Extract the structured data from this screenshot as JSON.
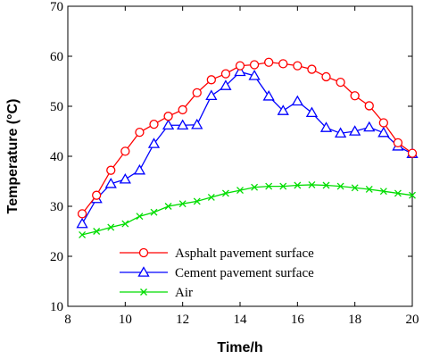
{
  "chart_data": {
    "type": "line",
    "xlabel": "Time/h",
    "ylabel": "Temperature (°C)",
    "xlim": [
      8,
      20
    ],
    "ylim": [
      10,
      70
    ],
    "xticks": [
      8,
      10,
      12,
      14,
      16,
      18,
      20
    ],
    "yticks": [
      10,
      20,
      30,
      40,
      50,
      60,
      70
    ],
    "grid": false,
    "legend_position": "bottom-center",
    "x": [
      8.5,
      9.0,
      9.5,
      10.0,
      10.5,
      11.0,
      11.5,
      12.0,
      12.5,
      13.0,
      13.5,
      14.0,
      14.5,
      15.0,
      15.5,
      16.0,
      16.5,
      17.0,
      17.5,
      18.0,
      18.5,
      19.0,
      19.5,
      20.0
    ],
    "series": [
      {
        "name": "Asphalt pavement surface",
        "color": "#ff0000",
        "marker": "circle",
        "values": [
          28.5,
          32.2,
          37.2,
          41.0,
          44.8,
          46.4,
          48.0,
          49.3,
          52.7,
          55.3,
          56.5,
          58.1,
          58.3,
          58.8,
          58.5,
          58.1,
          57.4,
          55.9,
          54.8,
          52.1,
          50.1,
          46.7,
          42.7,
          40.6
        ]
      },
      {
        "name": "Cement pavement surface",
        "color": "#0000ff",
        "marker": "triangle",
        "values": [
          26.5,
          31.5,
          34.5,
          35.4,
          37.2,
          42.5,
          46.2,
          46.2,
          46.3,
          52.1,
          54.1,
          56.9,
          56.1,
          52.0,
          49.1,
          51.0,
          48.7,
          45.7,
          44.6,
          45.0,
          45.8,
          44.7,
          42.0,
          40.5
        ]
      },
      {
        "name": "Air",
        "color": "#00dd00",
        "marker": "x",
        "values": [
          24.3,
          25.0,
          25.8,
          26.5,
          28.0,
          28.8,
          30.0,
          30.5,
          31.0,
          31.8,
          32.6,
          33.2,
          33.8,
          34.0,
          34.0,
          34.2,
          34.3,
          34.2,
          34.0,
          33.7,
          33.4,
          33.0,
          32.6,
          32.2
        ]
      }
    ]
  }
}
